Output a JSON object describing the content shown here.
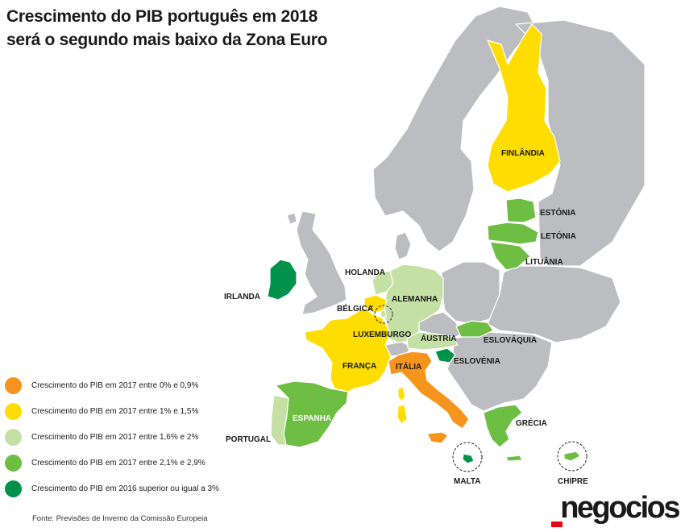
{
  "title": {
    "line1": "Crescimento do PIB português em 2018",
    "line2": "será o segundo mais baixo da Zona Euro"
  },
  "colors": {
    "land": "#bcbdc0",
    "border": "#ffffff",
    "orange": "#f7941d",
    "yellow": "#ffdd00",
    "light_green": "#c5e0a5",
    "green": "#6fbe44",
    "dark_green": "#00924b"
  },
  "legend": [
    {
      "color": "#f7941d",
      "label": "Crescimento do PIB em 2017 entre 0% e 0,9%"
    },
    {
      "color": "#ffdd00",
      "label": "Crescimento do PIB em 2017 entre 1% e 1,5%"
    },
    {
      "color": "#c5e0a5",
      "label": "Crescimento do PIB em 2017 entre 1,6% e 2%"
    },
    {
      "color": "#6fbe44",
      "label": "Crescimento do PIB em 2017 entre 2,1% e 2,9%"
    },
    {
      "color": "#00924b",
      "label": "Crescimento do PIB em 2016 superior ou igual a 3%"
    }
  ],
  "countries": {
    "finlandia": "FINLÂNDIA",
    "estonia": "ESTÓNIA",
    "letonia": "LETÓNIA",
    "lituania": "LITUÂNIA",
    "holanda": "HOLANDA",
    "irlanda": "IRLANDA",
    "belgica": "BÉLGICA",
    "alemanha": "ALEMANHA",
    "luxemburgo": "LUXEMBURGO",
    "austria": "ÁUSTRIA",
    "eslovaquia": "ESLOVÁQUIA",
    "eslovenia": "ESLOVÉNIA",
    "franca": "FRANÇA",
    "italia": "ITÁLIA",
    "espanha": "ESPANHA",
    "portugal": "PORTUGAL",
    "grecia": "GRÉCIA",
    "malta": "MALTA",
    "chipre": "CHIPRE"
  },
  "source": "Fonte: Previsões de Inverno da Comissão Europeia",
  "logo": "negocios"
}
